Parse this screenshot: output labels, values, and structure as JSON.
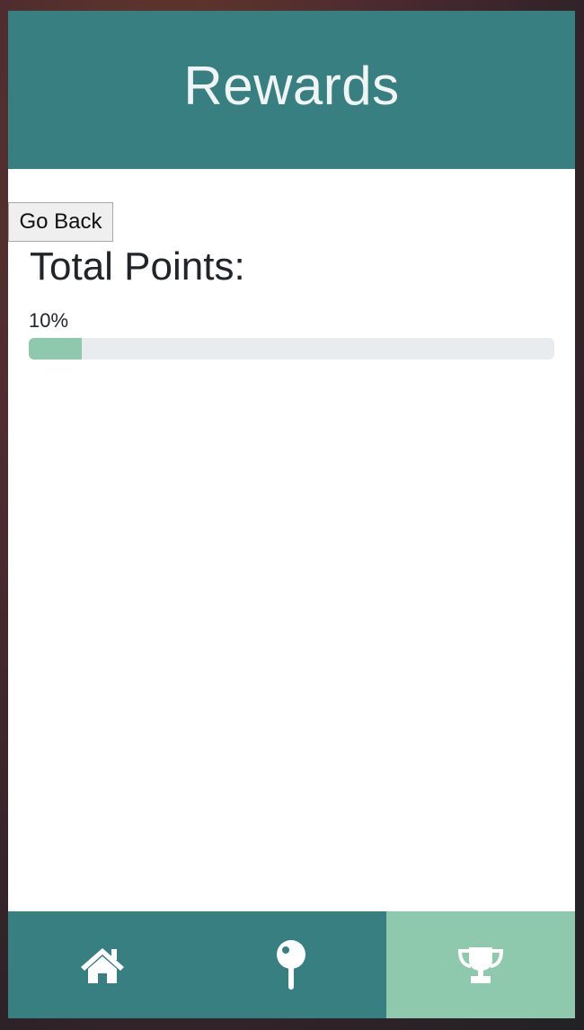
{
  "header": {
    "title": "Rewards"
  },
  "actions": {
    "back_label": "Go Back"
  },
  "points": {
    "title": "Total Points:",
    "progress_text": "10%",
    "progress_fraction": 0.1
  },
  "nav": {
    "items": [
      {
        "name": "home",
        "icon": "home-icon",
        "active": false
      },
      {
        "name": "location",
        "icon": "map-pin-icon",
        "active": false
      },
      {
        "name": "rewards",
        "icon": "trophy-icon",
        "active": true
      }
    ]
  },
  "colors": {
    "header_bg": "#387f81",
    "accent": "#8ec8ad",
    "track": "#e9ecef",
    "text": "#212529"
  }
}
